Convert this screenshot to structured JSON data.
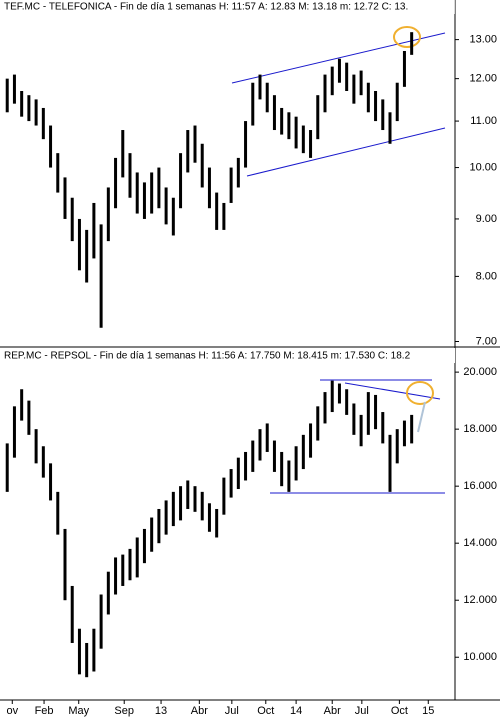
{
  "chart_data": [
    {
      "type": "range-bar",
      "title": "TEF.MC - TELEFONICA - Fin de día 1 semanas  H: 11:57  A: 12.83  M: 13.18  m: 12.72  C: 13.",
      "color": "#000000",
      "log_scale": true,
      "xlim": [
        -1,
        62
      ],
      "ylim": [
        6.95,
        14.1
      ],
      "yticks": [
        {
          "value": 13,
          "label": "13.00"
        },
        {
          "value": 12,
          "label": "12.00"
        },
        {
          "value": 11,
          "label": "11.00"
        },
        {
          "value": 10,
          "label": "10.00"
        },
        {
          "value": 9,
          "label": "9.00"
        },
        {
          "value": 8,
          "label": "8.00"
        },
        {
          "value": 7,
          "label": "7.00"
        }
      ],
      "low": [
        11.2,
        11.4,
        11.1,
        11.0,
        10.9,
        10.6,
        10.0,
        9.5,
        9.0,
        8.6,
        8.1,
        7.9,
        8.3,
        7.2,
        8.6,
        9.2,
        9.8,
        9.4,
        9.1,
        9.0,
        9.1,
        9.2,
        8.9,
        8.7,
        9.2,
        9.9,
        10.1,
        9.6,
        9.2,
        8.8,
        8.8,
        9.3,
        9.6,
        10.0,
        10.9,
        11.5,
        11.2,
        10.8,
        10.7,
        10.6,
        10.4,
        10.3,
        10.2,
        10.6,
        11.2,
        11.6,
        11.9,
        11.7,
        11.4,
        11.6,
        11.2,
        11.0,
        10.8,
        10.5,
        11.0,
        11.8,
        12.6
      ],
      "high": [
        12.0,
        12.1,
        11.7,
        11.6,
        11.5,
        11.3,
        10.9,
        10.3,
        9.8,
        9.4,
        9.0,
        8.8,
        9.3,
        8.9,
        9.6,
        10.2,
        10.8,
        10.3,
        9.9,
        9.7,
        9.9,
        10.0,
        9.6,
        9.4,
        10.3,
        10.8,
        10.9,
        10.5,
        10.0,
        9.5,
        9.3,
        10.0,
        10.2,
        11.0,
        11.9,
        12.1,
        11.9,
        11.6,
        11.3,
        11.2,
        11.1,
        10.9,
        10.8,
        11.6,
        12.1,
        12.3,
        12.5,
        12.4,
        12.1,
        12.2,
        11.9,
        11.7,
        11.5,
        11.2,
        11.9,
        12.7,
        13.2
      ]
    },
    {
      "type": "range-bar",
      "title": "REP.MC - REPSOL - Fin de día 1 semanas  H: 11:56  A: 17.750  M: 18.415  m: 17.530  C: 18.2",
      "color": "#000000",
      "log_scale": false,
      "xlim": [
        -1,
        62
      ],
      "ylim": [
        8.5,
        20.25
      ],
      "yticks": [
        {
          "value": 20,
          "label": "20.000"
        },
        {
          "value": 18,
          "label": "18.000"
        },
        {
          "value": 16,
          "label": "16.000"
        },
        {
          "value": 14,
          "label": "14.000"
        },
        {
          "value": 12,
          "label": "12.000"
        },
        {
          "value": 10,
          "label": "10.000"
        }
      ],
      "xticks": [
        {
          "value": 0.7,
          "label": "ov"
        },
        {
          "value": 5.1,
          "label": "Feb"
        },
        {
          "value": 9.9,
          "label": "May"
        },
        {
          "value": 16.2,
          "label": "Sep"
        },
        {
          "value": 21.3,
          "label": "13"
        },
        {
          "value": 26.6,
          "label": "Abr"
        },
        {
          "value": 31.1,
          "label": "Jul"
        },
        {
          "value": 35.8,
          "label": "Oct"
        },
        {
          "value": 40,
          "label": "14"
        },
        {
          "value": 45,
          "label": "Abr"
        },
        {
          "value": 49.1,
          "label": "Jul"
        },
        {
          "value": 54.3,
          "label": "Oct"
        },
        {
          "value": 58.3,
          "label": "15"
        }
      ],
      "low": [
        15.8,
        17.0,
        18.3,
        17.8,
        16.8,
        16.3,
        15.5,
        14.3,
        12.0,
        10.5,
        9.4,
        9.3,
        9.5,
        10.3,
        11.5,
        12.2,
        12.5,
        12.7,
        12.8,
        13.3,
        13.7,
        14.0,
        14.3,
        14.6,
        14.8,
        15.2,
        15.1,
        14.8,
        14.4,
        14.2,
        15.0,
        15.6,
        15.9,
        16.2,
        16.5,
        16.9,
        17.2,
        16.5,
        16.0,
        15.8,
        16.2,
        16.6,
        17.0,
        17.6,
        18.2,
        18.6,
        18.9,
        18.5,
        17.8,
        17.4,
        17.8,
        18.0,
        17.5,
        15.8,
        16.8,
        17.4,
        17.5
      ],
      "high": [
        17.5,
        18.8,
        19.4,
        19.0,
        18.0,
        17.4,
        16.8,
        15.8,
        14.5,
        12.5,
        11.0,
        10.5,
        11.0,
        12.2,
        13.0,
        13.5,
        13.6,
        13.8,
        14.2,
        14.5,
        14.9,
        15.2,
        15.5,
        15.8,
        16.0,
        16.2,
        16.0,
        15.8,
        15.4,
        15.2,
        16.3,
        16.6,
        17.0,
        17.2,
        17.6,
        18.0,
        18.2,
        17.6,
        17.2,
        16.9,
        17.4,
        17.8,
        18.2,
        18.8,
        19.3,
        19.7,
        19.6,
        19.4,
        18.9,
        18.5,
        19.3,
        19.2,
        18.6,
        17.8,
        18.0,
        18.3,
        18.5
      ]
    }
  ]
}
